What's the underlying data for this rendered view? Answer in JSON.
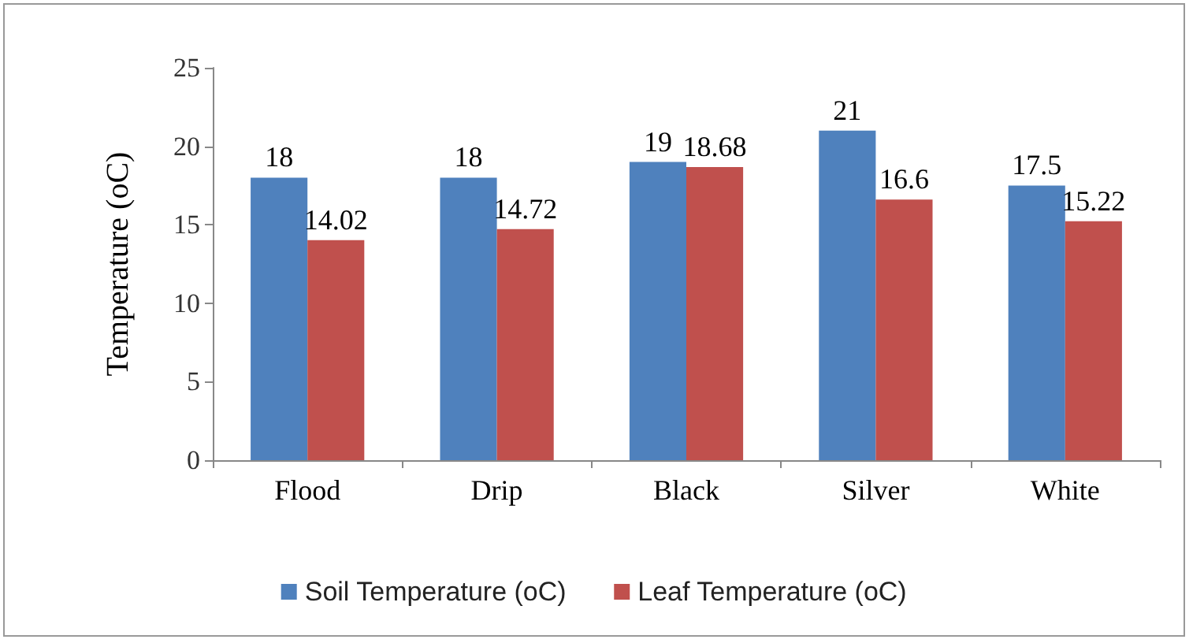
{
  "chart_data": {
    "type": "bar",
    "ylabel": "Temperature (oC)",
    "categories": [
      "Flood",
      "Drip",
      "Black",
      "Silver",
      "White"
    ],
    "series": [
      {
        "name": "Soil Temperature (oC)",
        "color": "#4f81bd",
        "values": [
          18,
          18,
          19,
          21,
          17.5
        ]
      },
      {
        "name": "Leaf Temperature (oC)",
        "color": "#c0504d",
        "values": [
          14.02,
          14.72,
          18.68,
          16.6,
          15.22
        ]
      }
    ],
    "ylim": [
      0,
      25
    ],
    "yticks": [
      0,
      5,
      10,
      15,
      20,
      25
    ],
    "grid": false,
    "legend": "bottom",
    "data_labels": true
  }
}
